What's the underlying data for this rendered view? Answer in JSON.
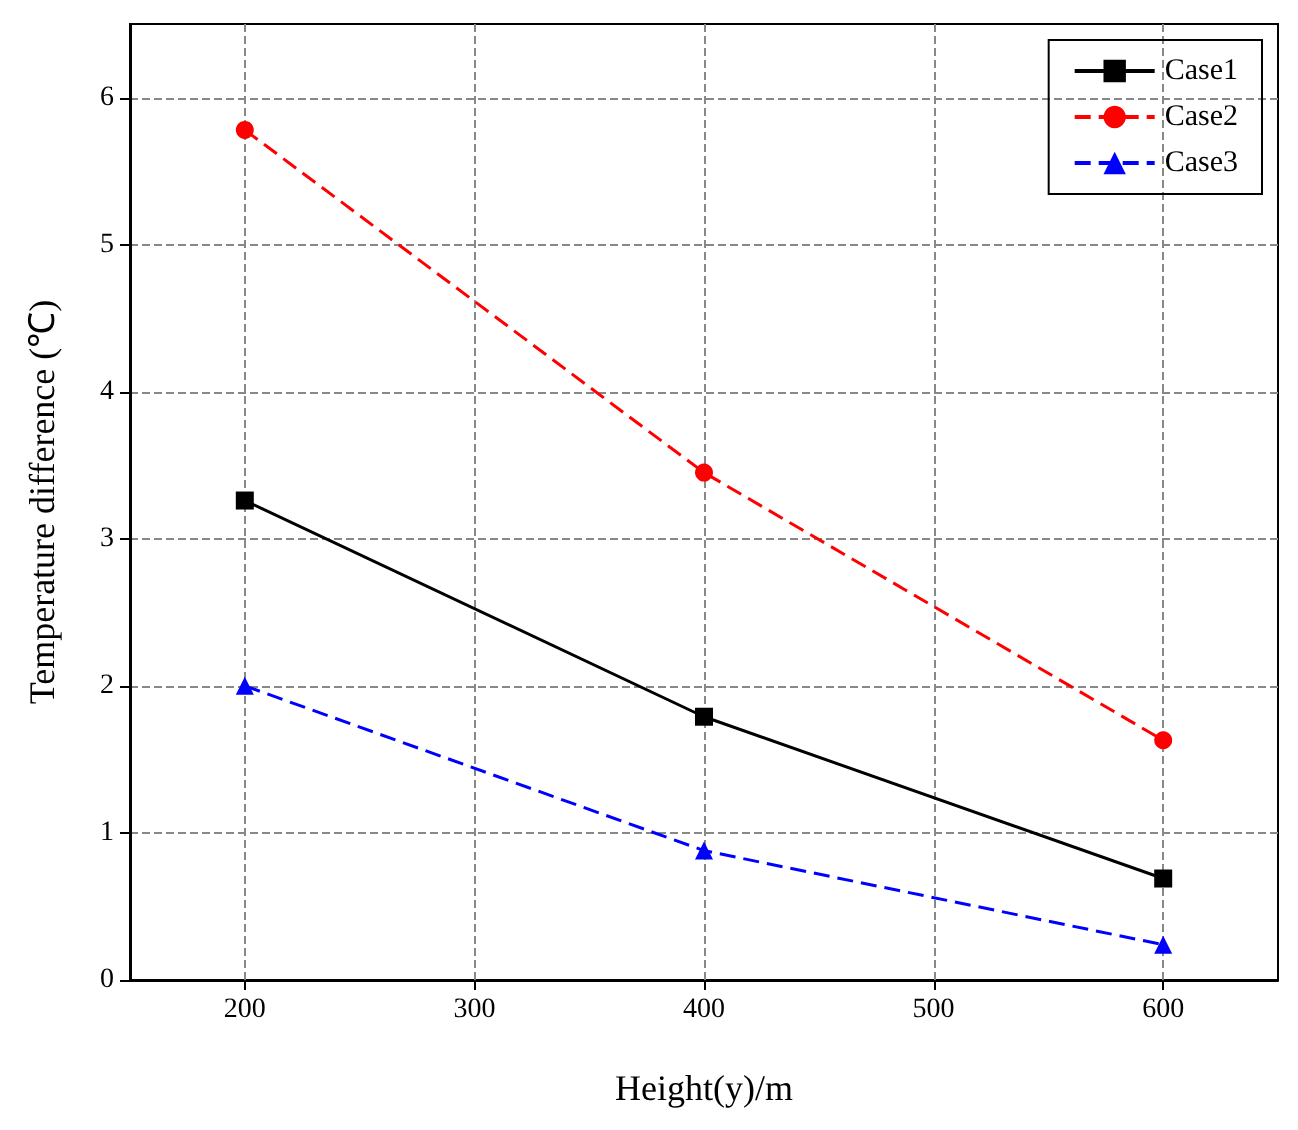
{
  "chart_data": {
    "type": "line",
    "xlabel": "Height(y)/m",
    "ylabel": "Temperature difference (℃)",
    "x": [
      200,
      400,
      600
    ],
    "series": [
      {
        "name": "Case1",
        "color": "#000000",
        "values": [
          3.26,
          1.79,
          0.69
        ],
        "marker": "square",
        "line_style": "solid"
      },
      {
        "name": "Case2",
        "color": "#ff0000",
        "values": [
          5.78,
          3.45,
          1.63
        ],
        "marker": "circle",
        "line_style": "dashed"
      },
      {
        "name": "Case3",
        "color": "#0000ff",
        "values": [
          2.0,
          0.88,
          0.24
        ],
        "marker": "triangle",
        "line_style": "dashed"
      }
    ],
    "xlim": [
      150,
      650
    ],
    "xticks": [
      200,
      300,
      400,
      500,
      600
    ],
    "ylim": [
      0,
      6.5
    ],
    "yticks": [
      0,
      1,
      2,
      3,
      4,
      5,
      6
    ],
    "grid": true,
    "legend": "top right"
  }
}
